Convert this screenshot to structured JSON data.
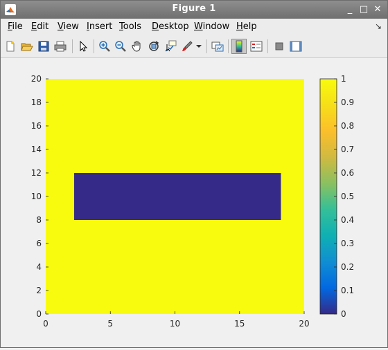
{
  "window": {
    "title": "Figure 1",
    "controls": {
      "minimize": "_",
      "maximize": "□",
      "close": "✕"
    }
  },
  "menubar": {
    "items": [
      {
        "label": "File",
        "mnemonic": "F",
        "rest": "ile"
      },
      {
        "label": "Edit",
        "mnemonic": "E",
        "rest": "dit"
      },
      {
        "label": "View",
        "mnemonic": "V",
        "rest": "iew"
      },
      {
        "label": "Insert",
        "mnemonic": "I",
        "rest": "nsert"
      },
      {
        "label": "Tools",
        "mnemonic": "T",
        "rest": "ools"
      },
      {
        "label": "Desktop",
        "mnemonic": "D",
        "rest": "esktop"
      },
      {
        "label": "Window",
        "mnemonic": "W",
        "rest": "indow"
      },
      {
        "label": "Help",
        "mnemonic": "H",
        "rest": "elp"
      }
    ],
    "overflow_icon": "dock-arrow-icon"
  },
  "toolbar": {
    "buttons": [
      {
        "name": "new-figure-icon"
      },
      {
        "name": "open-file-icon"
      },
      {
        "name": "save-figure-icon"
      },
      {
        "name": "print-figure-icon"
      },
      {
        "name": "edit-plot-icon"
      },
      {
        "name": "zoom-in-icon"
      },
      {
        "name": "zoom-out-icon"
      },
      {
        "name": "pan-icon"
      },
      {
        "name": "rotate-3d-icon"
      },
      {
        "name": "data-cursor-icon"
      },
      {
        "name": "brush-icon"
      },
      {
        "name": "link-plot-icon"
      },
      {
        "name": "insert-colorbar-icon",
        "active": true
      },
      {
        "name": "insert-legend-icon"
      },
      {
        "name": "hide-plot-tools-icon"
      },
      {
        "name": "show-plot-tools-icon"
      }
    ]
  },
  "colors": {
    "image_high": "#f9fb0e",
    "image_low": "#352a87",
    "figure_bg": "#f0f0f0"
  },
  "chart_data": {
    "type": "heatmap",
    "description_values": "binary image: value 1 everywhere except a rectangle of value 0",
    "xlim": [
      0,
      20
    ],
    "ylim": [
      0,
      20
    ],
    "x_ticks": [
      0,
      5,
      10,
      15,
      20
    ],
    "y_ticks": [
      0,
      2,
      4,
      6,
      8,
      10,
      12,
      14,
      16,
      18,
      20
    ],
    "background_value": 1,
    "rectangle": {
      "x": [
        2.2,
        18.2
      ],
      "y": [
        8,
        12
      ],
      "value": 0
    },
    "colorbar": {
      "limits": [
        0,
        1
      ],
      "ticks": [
        0,
        0.1,
        0.2,
        0.3,
        0.4,
        0.5,
        0.6,
        0.7,
        0.8,
        0.9,
        1
      ],
      "tick_labels": [
        "0",
        "0.1",
        "0.2",
        "0.3",
        "0.4",
        "0.5",
        "0.6",
        "0.7",
        "0.8",
        "0.9",
        "1"
      ],
      "colormap": "parula",
      "stops": [
        "#352a87",
        "#0268e1",
        "#108ed2",
        "#0fb0b3",
        "#34bf98",
        "#8bc060",
        "#d0ba40",
        "#fcbf2b",
        "#f6df18",
        "#f9fb0e"
      ],
      "location": "right"
    }
  }
}
